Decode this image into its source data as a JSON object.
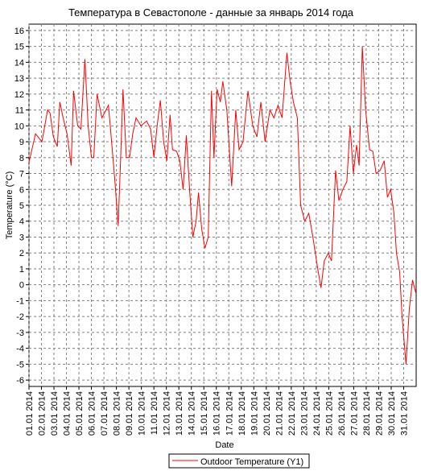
{
  "chart_data": {
    "type": "line",
    "title": "Температура в Севастополе - данные за январь 2014 года",
    "xlabel": "Date",
    "ylabel": "Temperature (°C)",
    "x": [
      1.0,
      1.52,
      2.04,
      2.49,
      2.69,
      2.95,
      3.27,
      3.47,
      3.73,
      4.05,
      4.38,
      4.57,
      4.9,
      5.16,
      5.48,
      5.74,
      6.0,
      6.19,
      6.45,
      6.84,
      7.17,
      7.36,
      7.56,
      7.88,
      8.14,
      8.34,
      8.53,
      8.79,
      9.05,
      9.31,
      9.57,
      9.96,
      10.42,
      10.74,
      11.0,
      11.26,
      11.52,
      11.78,
      12.04,
      12.3,
      12.49,
      12.82,
      13.08,
      13.34,
      13.6,
      13.86,
      14.12,
      14.38,
      14.57,
      14.83,
      15.09,
      15.35,
      15.61,
      15.81,
      16.06,
      16.32,
      16.52,
      16.84,
      17.23,
      17.56,
      17.82,
      18.14,
      18.53,
      18.92,
      19.25,
      19.57,
      19.9,
      20.29,
      20.61,
      20.94,
      21.26,
      21.65,
      21.91,
      22.17,
      22.49,
      22.75,
      23.08,
      23.4,
      23.73,
      24.12,
      24.38,
      24.64,
      24.96,
      25.22,
      25.55,
      25.81,
      26.13,
      26.45,
      26.71,
      26.97,
      27.23,
      27.43,
      27.69,
      27.95,
      28.27,
      28.53,
      28.79,
      29.12,
      29.44,
      29.7,
      29.96,
      30.22,
      30.42,
      30.68,
      30.87,
      31.19,
      31.45,
      31.71,
      31.97
    ],
    "series": [
      {
        "name": "Outdoor Temperature (Y1)",
        "color": "#ff0000",
        "values": [
          7.7,
          9.5,
          9.0,
          11.0,
          10.8,
          9.3,
          8.7,
          11.5,
          10.5,
          9.5,
          7.5,
          12.2,
          10.0,
          9.8,
          14.2,
          10.0,
          8.0,
          8.0,
          12.0,
          10.5,
          11.0,
          11.3,
          9.5,
          6.5,
          3.7,
          8.0,
          12.3,
          8.0,
          8.0,
          9.5,
          10.5,
          10.0,
          10.3,
          9.8,
          8.0,
          10.0,
          11.6,
          9.0,
          7.8,
          10.7,
          8.5,
          8.4,
          7.8,
          6.0,
          9.4,
          6.0,
          3.0,
          4.0,
          5.8,
          3.5,
          2.3,
          3.0,
          12.2,
          8.0,
          12.3,
          11.5,
          12.8,
          11.0,
          6.2,
          11.0,
          8.5,
          9.0,
          12.2,
          10.0,
          9.3,
          11.5,
          9.0,
          11.0,
          10.5,
          11.3,
          10.5,
          14.6,
          12.8,
          11.5,
          10.5,
          5.0,
          4.0,
          4.5,
          3.0,
          1.0,
          -0.2,
          1.5,
          2.0,
          1.5,
          7.2,
          5.3,
          6.0,
          6.5,
          10.0,
          7.0,
          8.8,
          7.5,
          15.0,
          11.0,
          8.5,
          8.4,
          7.0,
          7.2,
          7.8,
          5.5,
          6.0,
          4.5,
          2.0,
          0.8,
          -2.0,
          -5.0,
          -1.5,
          0.3,
          -0.5
        ]
      }
    ],
    "xlim": [
      1,
      32
    ],
    "xticks": [
      {
        "value": 1,
        "label": "01.01 2014"
      },
      {
        "value": 2,
        "label": "02.01 2014"
      },
      {
        "value": 3,
        "label": "03.01 2014"
      },
      {
        "value": 4,
        "label": "04.01 2014"
      },
      {
        "value": 5,
        "label": "05.01 2014"
      },
      {
        "value": 6,
        "label": "06.01 2014"
      },
      {
        "value": 7,
        "label": "07.01 2014"
      },
      {
        "value": 8,
        "label": "08.01 2014"
      },
      {
        "value": 9,
        "label": "09.01 2014"
      },
      {
        "value": 10,
        "label": "10.01 2014"
      },
      {
        "value": 11,
        "label": "11.01 2014"
      },
      {
        "value": 12,
        "label": "12.01 2014"
      },
      {
        "value": 13,
        "label": "13.01 2014"
      },
      {
        "value": 14,
        "label": "14.01 2014"
      },
      {
        "value": 15,
        "label": "15.01 2014"
      },
      {
        "value": 16,
        "label": "16.01 2014"
      },
      {
        "value": 17,
        "label": "17.01 2014"
      },
      {
        "value": 18,
        "label": "18.01 2014"
      },
      {
        "value": 19,
        "label": "19.01 2014"
      },
      {
        "value": 20,
        "label": "20.01 2014"
      },
      {
        "value": 21,
        "label": "21.01 2014"
      },
      {
        "value": 22,
        "label": "22.01 2014"
      },
      {
        "value": 23,
        "label": "23.01 2014"
      },
      {
        "value": 24,
        "label": "24.01 2014"
      },
      {
        "value": 25,
        "label": "25.01 2014"
      },
      {
        "value": 26,
        "label": "26.01 2014"
      },
      {
        "value": 27,
        "label": "27.01 2014"
      },
      {
        "value": 28,
        "label": "28.01 2014"
      },
      {
        "value": 29,
        "label": "29.01 2014"
      },
      {
        "value": 30,
        "label": "30.01 2014"
      },
      {
        "value": 31,
        "label": "31.01 2014"
      }
    ],
    "ylim": [
      -6.4,
      16.4
    ],
    "yticks": [
      -6,
      -5,
      -4,
      -3,
      -2,
      -1,
      0,
      1,
      2,
      3,
      4,
      5,
      6,
      7,
      8,
      9,
      10,
      11,
      12,
      13,
      14,
      15,
      16
    ],
    "grid": true,
    "legend": "bottom"
  }
}
